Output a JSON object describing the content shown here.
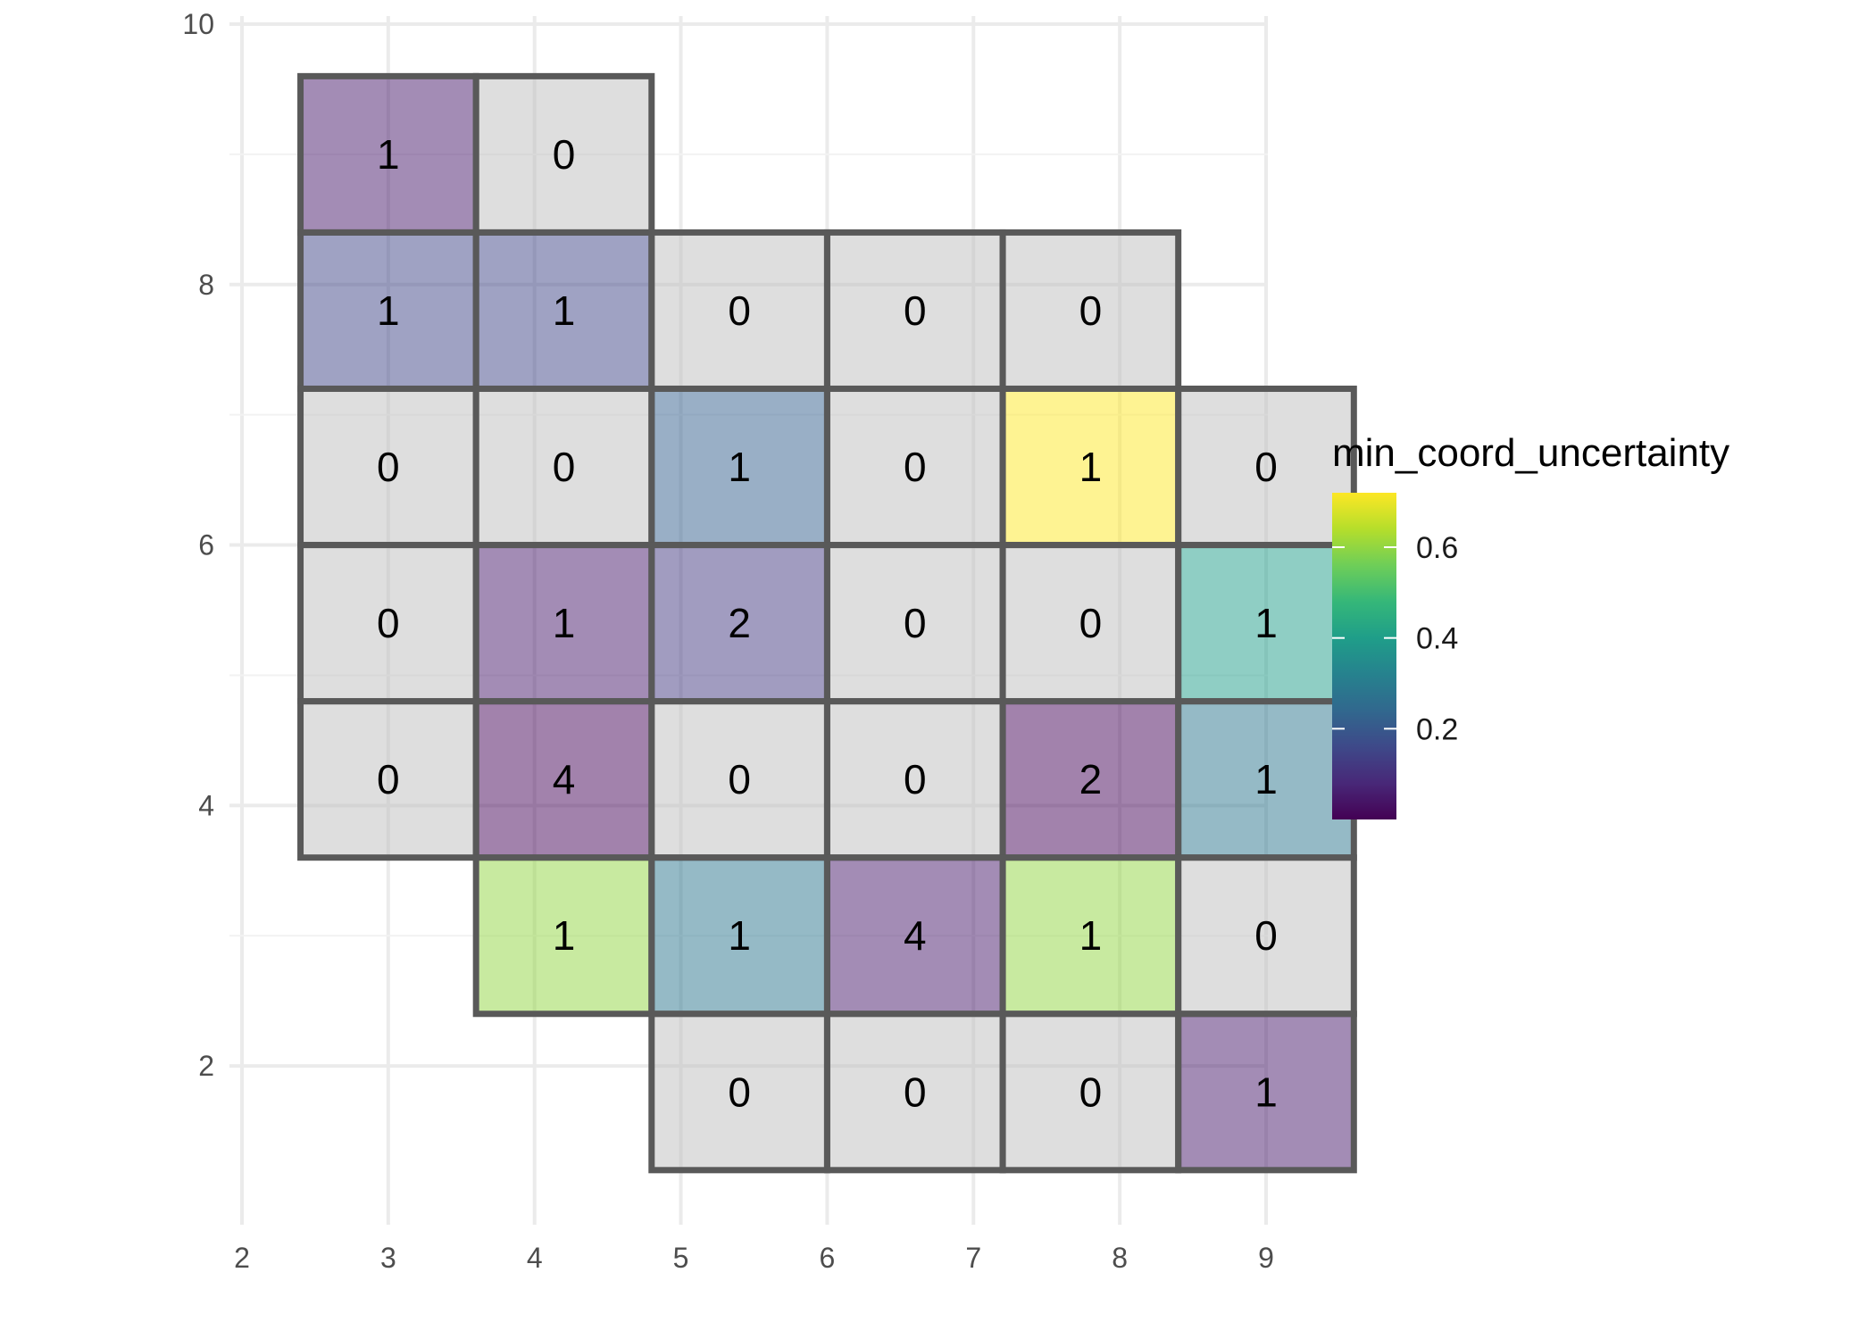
{
  "chart_data": {
    "type": "heatmap",
    "title": "",
    "xlabel": "",
    "ylabel": "",
    "xlim": [
      2,
      9
    ],
    "ylim": [
      1,
      10
    ],
    "x_ticks": [
      "2",
      "3",
      "4",
      "5",
      "6",
      "7",
      "8",
      "9"
    ],
    "y_ticks": [
      "2",
      "4",
      "6",
      "8",
      "10"
    ],
    "grid": true,
    "legend": {
      "title": "min_coord_uncertainty",
      "placement": "right",
      "colormap": "viridis",
      "range": [
        0.0,
        0.72
      ],
      "tick_labels": [
        "0.2",
        "0.4",
        "0.6"
      ],
      "tick_values": [
        0.2,
        0.4,
        0.6
      ],
      "na_color": "#bebebe"
    },
    "cells": [
      {
        "x": 3.0,
        "y": 9.0,
        "count": "1",
        "value": 0.05
      },
      {
        "x": 4.2,
        "y": 9.0,
        "count": "0",
        "value": null
      },
      {
        "x": 3.0,
        "y": 7.8,
        "count": "1",
        "value": 0.15
      },
      {
        "x": 4.2,
        "y": 7.8,
        "count": "1",
        "value": 0.15
      },
      {
        "x": 5.4,
        "y": 7.8,
        "count": "0",
        "value": null
      },
      {
        "x": 6.6,
        "y": 7.8,
        "count": "0",
        "value": null
      },
      {
        "x": 7.8,
        "y": 7.8,
        "count": "0",
        "value": null
      },
      {
        "x": 3.0,
        "y": 6.6,
        "count": "0",
        "value": null
      },
      {
        "x": 4.2,
        "y": 6.6,
        "count": "0",
        "value": null
      },
      {
        "x": 5.4,
        "y": 6.6,
        "count": "1",
        "value": 0.22
      },
      {
        "x": 6.6,
        "y": 6.6,
        "count": "0",
        "value": null
      },
      {
        "x": 7.8,
        "y": 6.6,
        "count": "1",
        "value": 0.72
      },
      {
        "x": 9.0,
        "y": 6.6,
        "count": "0",
        "value": null
      },
      {
        "x": 3.0,
        "y": 5.4,
        "count": "0",
        "value": null
      },
      {
        "x": 4.2,
        "y": 5.4,
        "count": "1",
        "value": 0.05
      },
      {
        "x": 5.4,
        "y": 5.4,
        "count": "2",
        "value": 0.12
      },
      {
        "x": 6.6,
        "y": 5.4,
        "count": "0",
        "value": null
      },
      {
        "x": 7.8,
        "y": 5.4,
        "count": "0",
        "value": null
      },
      {
        "x": 9.0,
        "y": 5.4,
        "count": "1",
        "value": 0.4
      },
      {
        "x": 3.0,
        "y": 4.2,
        "count": "0",
        "value": null
      },
      {
        "x": 4.2,
        "y": 4.2,
        "count": "4",
        "value": 0.01
      },
      {
        "x": 5.4,
        "y": 4.2,
        "count": "0",
        "value": null
      },
      {
        "x": 6.6,
        "y": 4.2,
        "count": "0",
        "value": null
      },
      {
        "x": 7.8,
        "y": 4.2,
        "count": "2",
        "value": 0.01
      },
      {
        "x": 9.0,
        "y": 4.2,
        "count": "1",
        "value": 0.28
      },
      {
        "x": 4.2,
        "y": 3.0,
        "count": "1",
        "value": 0.6
      },
      {
        "x": 5.4,
        "y": 3.0,
        "count": "1",
        "value": 0.28
      },
      {
        "x": 6.6,
        "y": 3.0,
        "count": "4",
        "value": 0.05
      },
      {
        "x": 7.8,
        "y": 3.0,
        "count": "1",
        "value": 0.6
      },
      {
        "x": 9.0,
        "y": 3.0,
        "count": "0",
        "value": null
      },
      {
        "x": 5.4,
        "y": 1.8,
        "count": "0",
        "value": null
      },
      {
        "x": 6.6,
        "y": 1.8,
        "count": "0",
        "value": null
      },
      {
        "x": 7.8,
        "y": 1.8,
        "count": "0",
        "value": null
      },
      {
        "x": 9.0,
        "y": 1.8,
        "count": "1",
        "value": 0.05
      }
    ]
  }
}
